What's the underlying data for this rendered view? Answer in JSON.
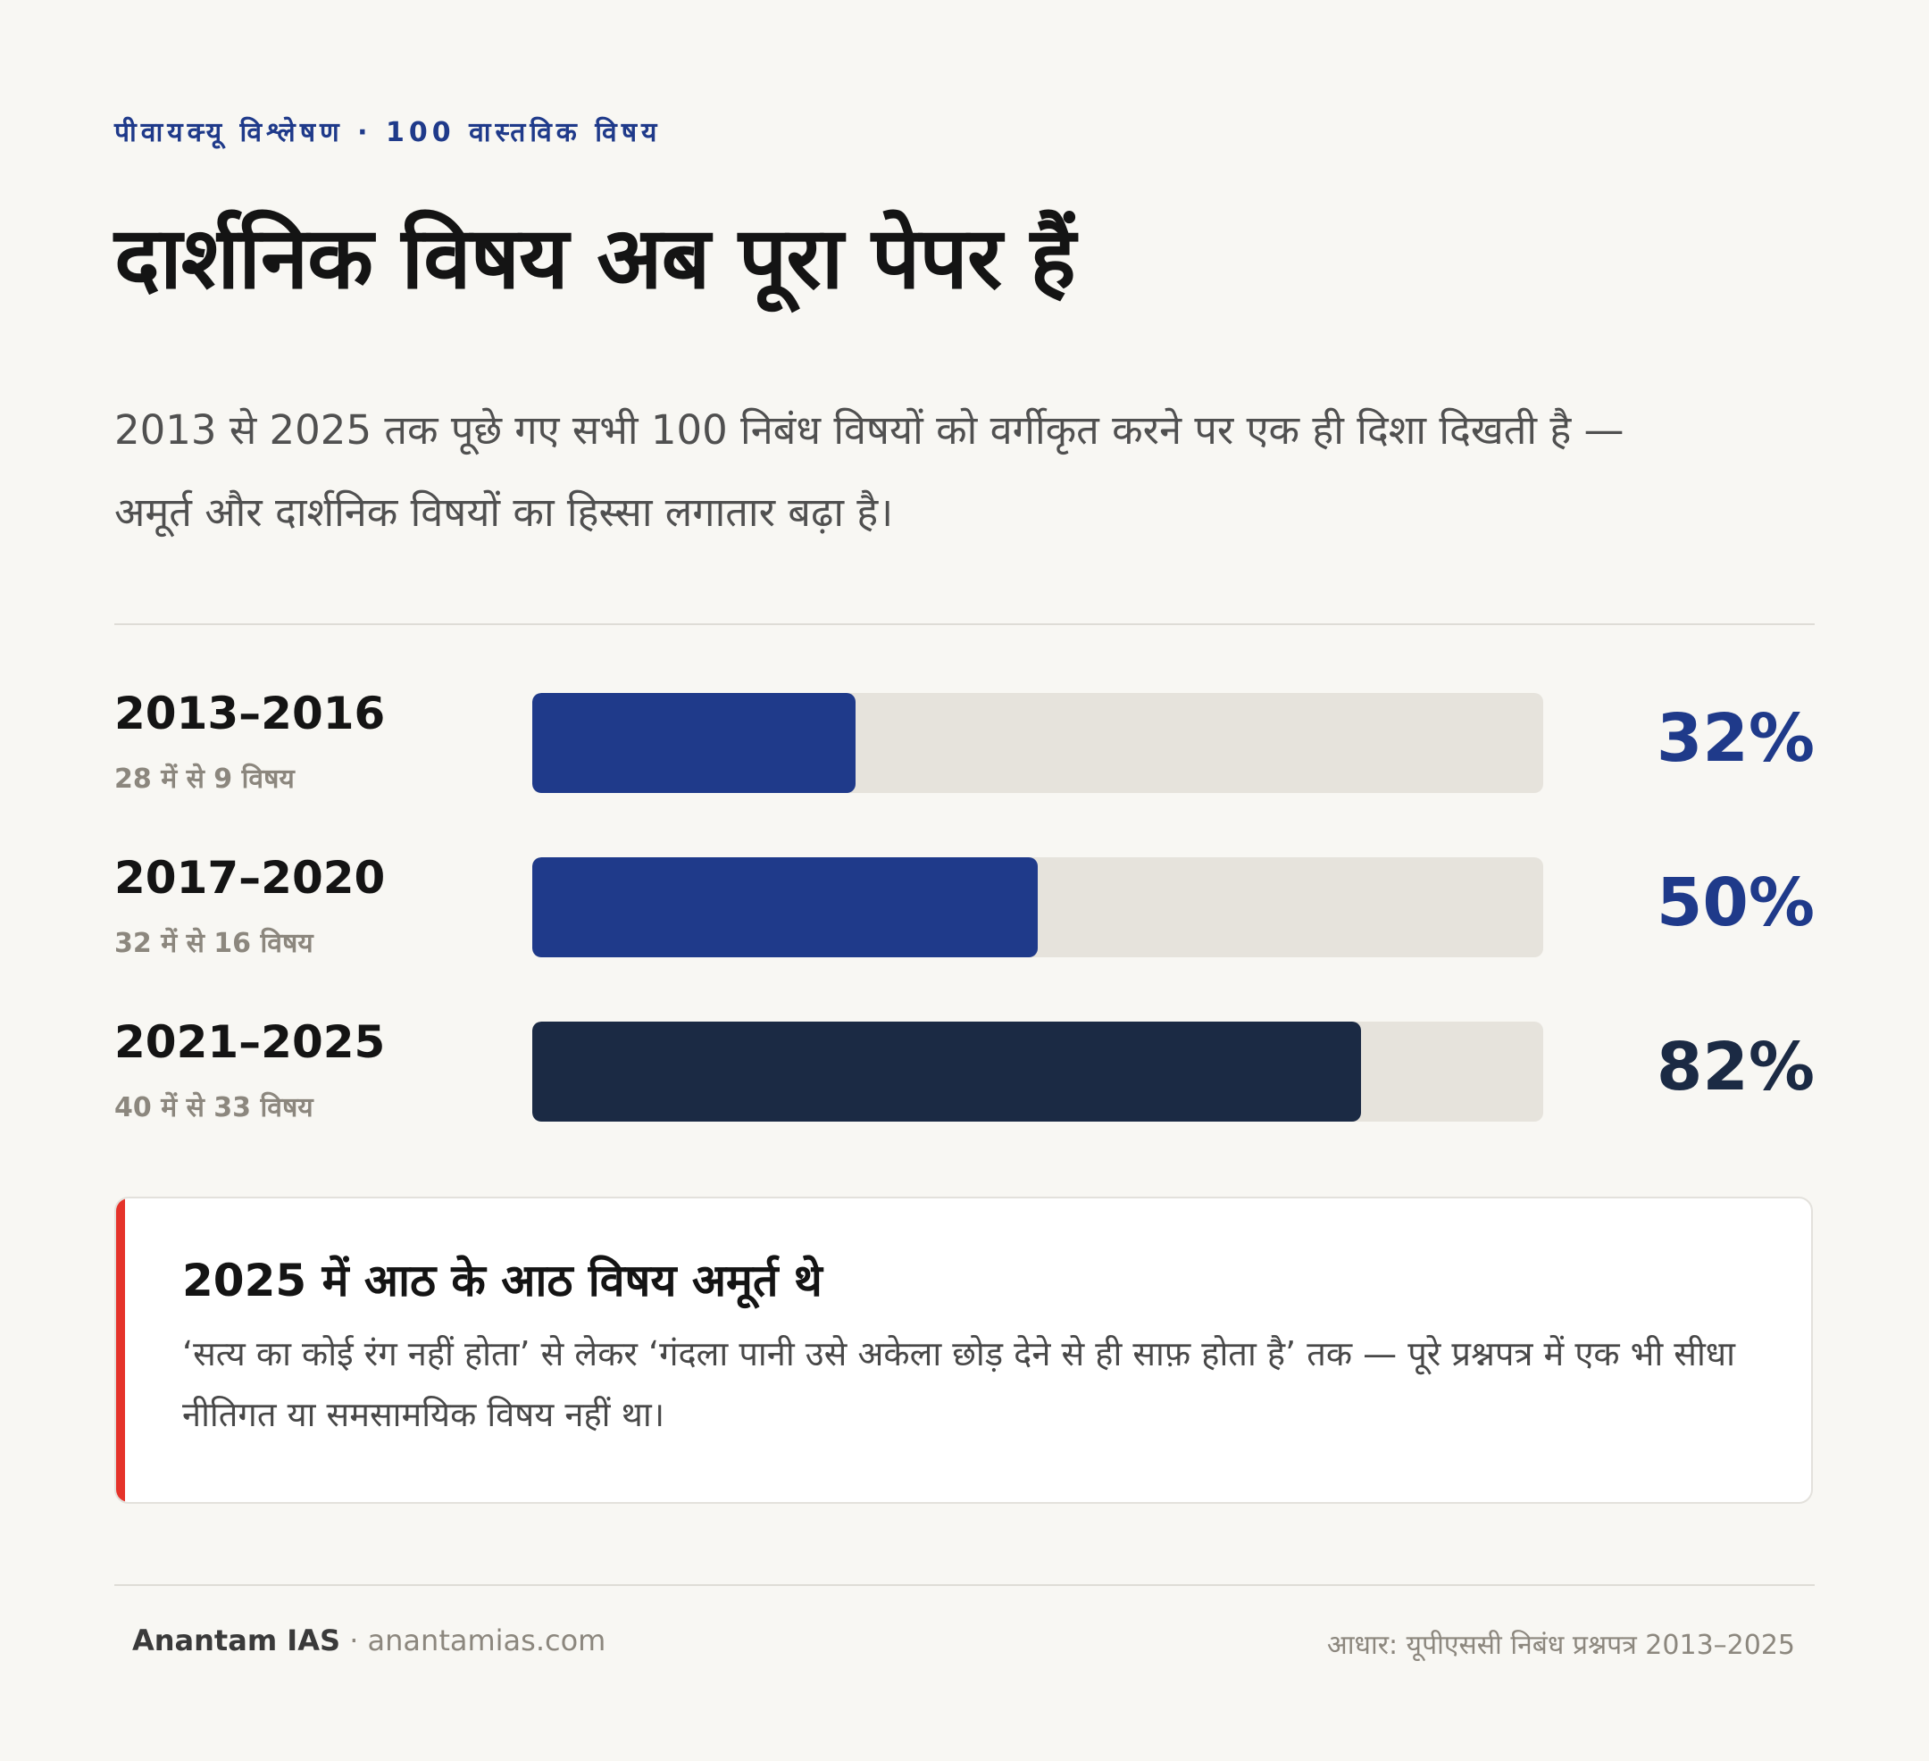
{
  "header": {
    "eyebrow": "पीवायक्यू विश्लेषण · 100 वास्तविक विषय",
    "title": "दार्शनिक विषय अब पूरा पेपर हैं",
    "subtitle": "2013 से 2025 तक पूछे गए सभी 100 निबंध विषयों को वर्गीकृत करने पर एक ही दिशा दिखती है — अमूर्त और दार्शनिक विषयों का हिस्सा लगातार बढ़ा है।"
  },
  "chart_data": {
    "type": "bar",
    "orientation": "horizontal",
    "categories": [
      "2013–2016",
      "2017–2020",
      "2021–2025"
    ],
    "sublabels": [
      "28 में से 9 विषय",
      "32 में से 16 विषय",
      "40 में से 33 विषय"
    ],
    "values": [
      32,
      50,
      82
    ],
    "value_labels": [
      "32%",
      "50%",
      "82%"
    ],
    "xlim": [
      0,
      100
    ],
    "colors": [
      "#1f3a8a",
      "#1f3a8a",
      "#1b2a44"
    ],
    "track_color": "#e6e3dc",
    "grid": false,
    "title": "",
    "xlabel": "",
    "ylabel": ""
  },
  "callout": {
    "title": "2025 में आठ के आठ विषय अमूर्त थे",
    "body": "‘सत्य का कोई रंग नहीं होता’ से लेकर ‘गंदला पानी उसे अकेला छोड़ देने से ही साफ़ होता है’ तक — पूरे प्रश्नपत्र में एक भी सीधा नीतिगत या समसामयिक विषय नहीं था।",
    "accent": "#e5332a"
  },
  "footer": {
    "brand": "Anantam IAS",
    "separator": " · ",
    "site": "anantamias.com",
    "source": "आधार: यूपीएससी निबंध प्रश्नपत्र 2013–2025"
  }
}
